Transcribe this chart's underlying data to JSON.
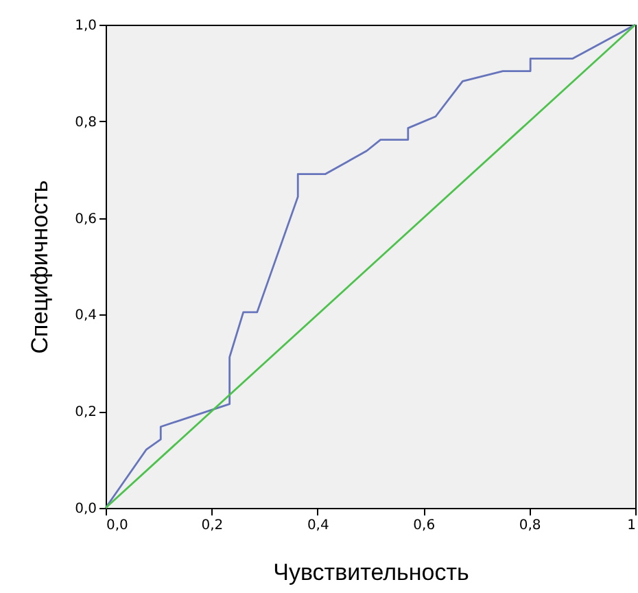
{
  "chart_data": {
    "type": "line",
    "xlabel": "Чувствительность",
    "ylabel": "Специфичность",
    "xlim": [
      0,
      1
    ],
    "ylim": [
      0,
      1
    ],
    "xticks": [
      {
        "value": 0,
        "label": "0,0"
      },
      {
        "value": 0.2,
        "label": "0,2"
      },
      {
        "value": 0.4,
        "label": "0,4"
      },
      {
        "value": 0.6,
        "label": "0,6"
      },
      {
        "value": 0.8,
        "label": "0,8"
      },
      {
        "value": 1,
        "label": "1"
      }
    ],
    "yticks": [
      {
        "value": 0,
        "label": "0,0"
      },
      {
        "value": 0.2,
        "label": "0,2"
      },
      {
        "value": 0.4,
        "label": "0,4"
      },
      {
        "value": 0.6,
        "label": "0,6"
      },
      {
        "value": 0.8,
        "label": "0,8"
      },
      {
        "value": 1,
        "label": "1,0"
      }
    ],
    "grid": false,
    "series": [
      {
        "color": "#6674bb",
        "x": [
          0,
          0.077,
          0.104,
          0.104,
          0.234,
          0.234,
          0.26,
          0.286,
          0.363,
          0.363,
          0.415,
          0.493,
          0.519,
          0.571,
          0.571,
          0.623,
          0.674,
          0.75,
          0.802,
          0.802,
          0.882,
          1
        ],
        "values": [
          0,
          0.121,
          0.142,
          0.168,
          0.215,
          0.312,
          0.405,
          0.405,
          0.644,
          0.691,
          0.691,
          0.739,
          0.762,
          0.762,
          0.786,
          0.81,
          0.883,
          0.904,
          0.904,
          0.93,
          0.93,
          1
        ]
      },
      {
        "color": "#4cc24c",
        "x": [
          0,
          1
        ],
        "values": [
          0,
          1
        ]
      }
    ]
  }
}
